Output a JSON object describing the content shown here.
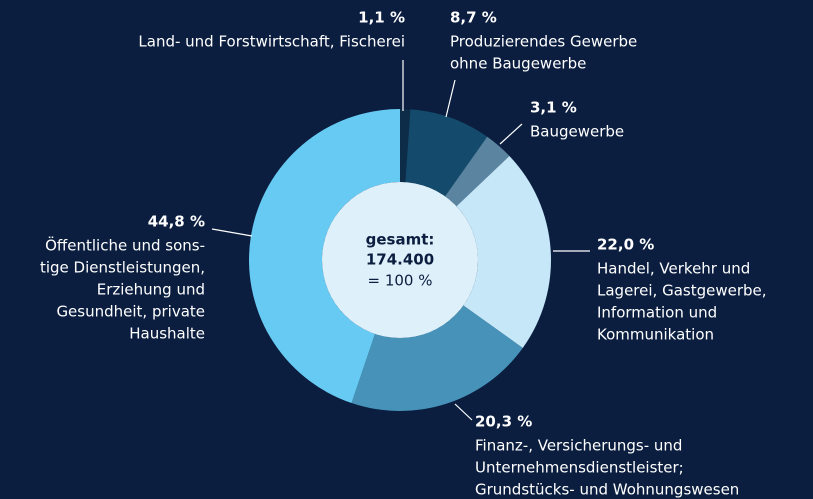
{
  "chart_data": {
    "type": "donut",
    "categories": [
      [
        "Land- und Forstwirtschaft, Fischerei"
      ],
      [
        "Produzierendes Gewerbe",
        "ohne Baugewerbe"
      ],
      [
        "Baugewerbe"
      ],
      [
        "Handel, Verkehr und",
        "Lagerei, Gastgewerbe,",
        "Information und",
        "Kommunikation"
      ],
      [
        "Finanz-, Versicherungs- und",
        "Unternehmensdienstleister;",
        "Grundstücks- und Wohnungswesen"
      ],
      [
        "Öffentliche und sons-",
        "tige Dienstleistungen,",
        "Erziehung und",
        "Gesundheit, private",
        "Haushalte"
      ]
    ],
    "values": [
      1.1,
      8.7,
      3.1,
      22.0,
      20.3,
      44.8
    ],
    "value_labels": [
      "1,1 %",
      "8,7 %",
      "3,1 %",
      "22,0 %",
      "20,3 %",
      "44,8 %"
    ],
    "colors": [
      "#0d2c48",
      "#144b6c",
      "#5b84a1",
      "#c6e7f8",
      "#4792b9",
      "#67caf3"
    ],
    "center_text": [
      "gesamt:",
      "174.400",
      "= 100 %"
    ]
  }
}
